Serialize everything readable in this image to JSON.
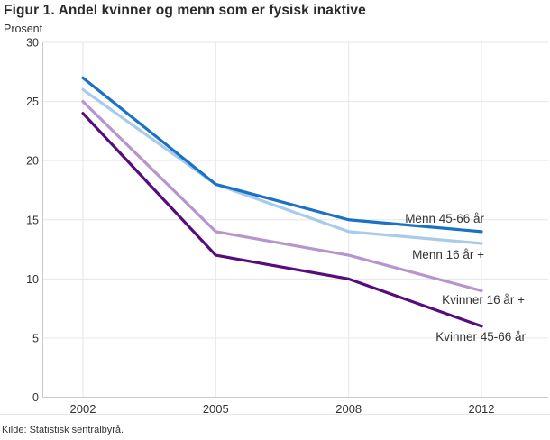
{
  "header": {
    "title": "Figur 1. Andel kvinner og menn som er fysisk inaktive",
    "unit_label": "Prosent"
  },
  "footer": {
    "source": "Kilde: Statistisk sentralbyrå."
  },
  "chart_data": {
    "type": "line",
    "title": "Figur 1. Andel kvinner og menn som er fysisk inaktive",
    "ylabel": "Prosent",
    "xlabel": "",
    "categories": [
      "2002",
      "2005",
      "2008",
      "2012"
    ],
    "ylim": [
      0,
      30
    ],
    "yticks": [
      0,
      5,
      10,
      15,
      20,
      25,
      30
    ],
    "grid": true,
    "legend_position": "inline-annotations-right",
    "series": [
      {
        "name": "Menn 45-66 år",
        "color": "#1a72c5",
        "values": [
          27,
          18,
          15,
          14
        ]
      },
      {
        "name": "Menn 16 år +",
        "color": "#a8cbec",
        "values": [
          26,
          18,
          14,
          13
        ]
      },
      {
        "name": "Kvinner 16 år +",
        "color": "#b794ce",
        "values": [
          25,
          14,
          12,
          9
        ]
      },
      {
        "name": "Kvinner 45-66 år",
        "color": "#570c7e",
        "values": [
          24,
          12,
          10,
          6
        ]
      }
    ],
    "colors": {
      "grid": "#e6e6e6",
      "axis": "#c9c9c9",
      "tick_text": "#333333"
    }
  }
}
